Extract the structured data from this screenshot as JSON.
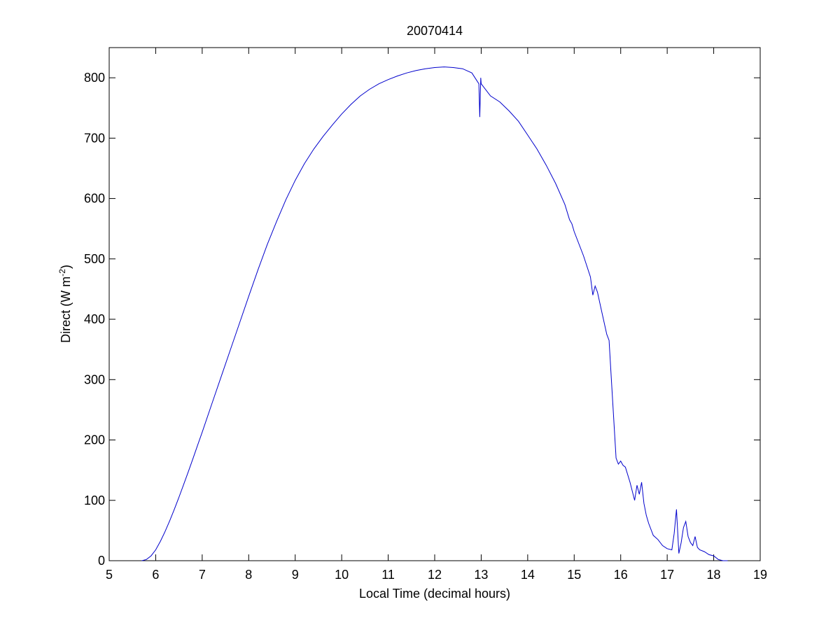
{
  "chart_data": {
    "type": "line",
    "title": "20070414",
    "xlabel": "Local Time (decimal hours)",
    "ylabel_main": "Direct (W m",
    "ylabel_sup": "-2",
    "ylabel_close": ")",
    "xlim": [
      5,
      19
    ],
    "ylim": [
      0,
      850
    ],
    "xticks": [
      5,
      6,
      7,
      8,
      9,
      10,
      11,
      12,
      13,
      14,
      15,
      16,
      17,
      18,
      19
    ],
    "yticks": [
      0,
      100,
      200,
      300,
      400,
      500,
      600,
      700,
      800
    ],
    "grid": false,
    "line_color": "#0000cc",
    "series": [
      {
        "x": [
          5.7,
          5.8,
          5.9,
          6.0,
          6.1,
          6.2,
          6.3,
          6.4,
          6.5,
          6.6,
          6.7,
          6.8,
          6.9,
          7.0,
          7.2,
          7.4,
          7.6,
          7.8,
          8.0,
          8.2,
          8.4,
          8.6,
          8.8,
          9.0,
          9.2,
          9.4,
          9.6,
          9.8,
          10.0,
          10.2,
          10.4,
          10.6,
          10.8,
          11.0,
          11.2,
          11.4,
          11.6,
          11.8,
          12.0,
          12.2,
          12.4,
          12.6,
          12.8,
          12.95,
          12.97,
          12.99,
          13.0,
          13.2,
          13.4,
          13.6,
          13.8,
          14.0,
          14.2,
          14.4,
          14.6,
          14.8,
          14.9,
          14.95,
          15.0,
          15.2,
          15.35,
          15.4,
          15.45,
          15.5,
          15.6,
          15.7,
          15.75,
          15.8,
          15.9,
          15.95,
          16.0,
          16.05,
          16.1,
          16.2,
          16.3,
          16.35,
          16.4,
          16.45,
          16.5,
          16.55,
          16.6,
          16.7,
          16.8,
          16.9,
          17.0,
          17.1,
          17.15,
          17.2,
          17.25,
          17.3,
          17.35,
          17.4,
          17.45,
          17.5,
          17.55,
          17.6,
          17.65,
          17.7,
          17.8,
          17.9,
          18.0,
          18.1,
          18.2,
          18.3
        ],
        "y": [
          0,
          2,
          8,
          18,
          32,
          48,
          66,
          85,
          105,
          126,
          147,
          169,
          191,
          213,
          258,
          303,
          348,
          393,
          438,
          482,
          524,
          562,
          598,
          630,
          658,
          682,
          703,
          722,
          740,
          756,
          770,
          781,
          790,
          797,
          803,
          808,
          812,
          815,
          817,
          818,
          817,
          815,
          808,
          790,
          735,
          800,
          790,
          770,
          760,
          745,
          728,
          705,
          682,
          655,
          625,
          590,
          565,
          558,
          545,
          505,
          470,
          440,
          455,
          445,
          410,
          375,
          365,
          300,
          170,
          160,
          165,
          158,
          155,
          130,
          100,
          125,
          110,
          130,
          95,
          75,
          62,
          42,
          35,
          25,
          20,
          18,
          45,
          85,
          12,
          30,
          55,
          65,
          40,
          30,
          25,
          40,
          22,
          18,
          15,
          10,
          8,
          2,
          0,
          0
        ]
      }
    ]
  }
}
